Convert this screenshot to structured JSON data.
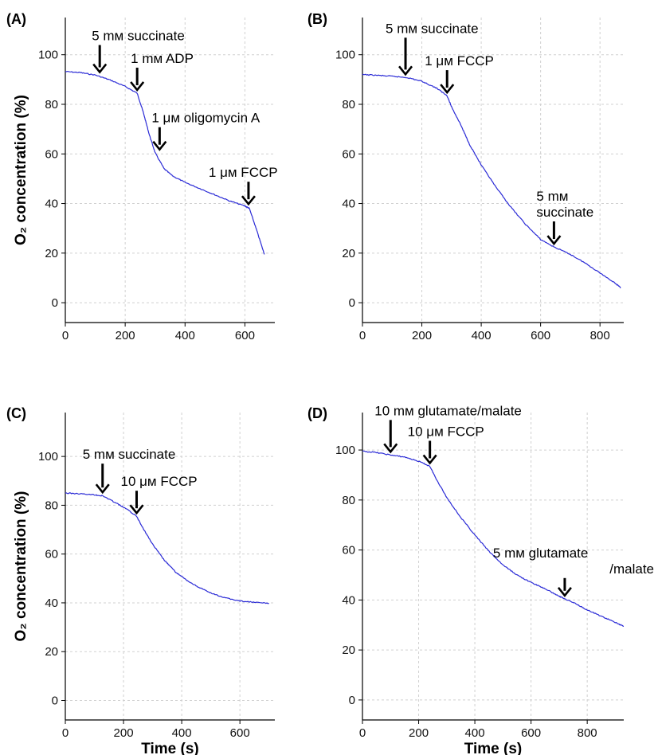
{
  "chart_data": [
    {
      "panel": "(A)",
      "type": "line",
      "xlim": [
        0,
        700
      ],
      "ylim": [
        -8,
        115
      ],
      "xticks": [
        0,
        200,
        400,
        600
      ],
      "yticks": [
        0,
        20,
        40,
        60,
        80,
        100
      ],
      "grid": true,
      "line_color": "#2b2bd6",
      "series": [
        {
          "x": [
            0,
            50,
            100,
            150,
            200,
            240,
            260,
            280,
            300,
            330,
            360,
            400,
            450,
            500,
            550,
            600,
            615,
            640,
            665
          ],
          "y": [
            93.2,
            92.8,
            91.8,
            89.8,
            87.2,
            84.5,
            77,
            68,
            60.5,
            54,
            51,
            48.5,
            46,
            43.5,
            41,
            39,
            38,
            29,
            19.5
          ]
        }
      ],
      "annotations": [
        {
          "lines": [
            "5 mᴍ succinate"
          ],
          "x": 115,
          "y": 91.7
        },
        {
          "lines": [
            "1 mᴍ ADP"
          ],
          "x": 240,
          "y": 84.5
        },
        {
          "lines": [
            "1 μᴍ oligomycin A"
          ],
          "x": 315,
          "y": 60.5
        },
        {
          "lines": [
            "1 μᴍ FCCP"
          ],
          "x": 612,
          "y": 38.5
        }
      ]
    },
    {
      "panel": "(B)",
      "type": "line",
      "xlim": [
        0,
        880
      ],
      "ylim": [
        -8,
        115
      ],
      "xticks": [
        0,
        200,
        400,
        600,
        800
      ],
      "yticks": [
        0,
        20,
        40,
        60,
        80,
        100
      ],
      "grid": true,
      "line_color": "#2b2bd6",
      "series": [
        {
          "x": [
            0,
            50,
            100,
            150,
            200,
            250,
            285,
            300,
            330,
            360,
            400,
            450,
            500,
            550,
            600,
            645,
            700,
            750,
            800,
            850,
            870
          ],
          "y": [
            92,
            91.7,
            91.3,
            90.8,
            89.3,
            86.5,
            83.5,
            79,
            72,
            64,
            55.5,
            46.5,
            38.5,
            31.5,
            25.5,
            22.5,
            19.5,
            16,
            12,
            8,
            6
          ]
        }
      ],
      "annotations": [
        {
          "lines": [
            "5 mᴍ succinate"
          ],
          "x": 145,
          "y": 90.8
        },
        {
          "lines": [
            "1 μᴍ FCCP"
          ],
          "x": 285,
          "y": 83.5
        },
        {
          "lines": [
            "5 mᴍ",
            "succinate"
          ],
          "x": 645,
          "y": 22.5
        }
      ]
    },
    {
      "panel": "(C)",
      "type": "line",
      "xlim": [
        0,
        720
      ],
      "ylim": [
        -8,
        118
      ],
      "xticks": [
        0,
        200,
        400,
        600
      ],
      "yticks": [
        0,
        20,
        40,
        60,
        80,
        100
      ],
      "grid": true,
      "line_color": "#2b2bd6",
      "series": [
        {
          "x": [
            0,
            50,
            100,
            130,
            170,
            210,
            245,
            270,
            300,
            340,
            380,
            420,
            460,
            500,
            550,
            600,
            650,
            700
          ],
          "y": [
            85,
            84.7,
            84.3,
            83.8,
            81.2,
            78.5,
            75.5,
            70,
            64,
            57.5,
            52.5,
            49,
            46.3,
            44,
            42,
            40.8,
            40.2,
            39.8
          ]
        }
      ],
      "annotations": [
        {
          "lines": [
            "5 mᴍ succinate"
          ],
          "x": 128,
          "y": 84
        },
        {
          "lines": [
            "10 μᴍ FCCP"
          ],
          "x": 245,
          "y": 75.5
        }
      ]
    },
    {
      "panel": "(D)",
      "type": "line",
      "xlim": [
        0,
        930
      ],
      "ylim": [
        -8,
        115
      ],
      "xticks": [
        0,
        200,
        400,
        600,
        800
      ],
      "yticks": [
        0,
        20,
        40,
        60,
        80,
        100
      ],
      "grid": true,
      "line_color": "#2b2bd6",
      "series": [
        {
          "x": [
            0,
            50,
            100,
            150,
            200,
            240,
            260,
            300,
            350,
            400,
            450,
            500,
            550,
            600,
            650,
            700,
            720,
            760,
            800,
            850,
            900,
            930
          ],
          "y": [
            99.5,
            99,
            98,
            97.2,
            95.5,
            93.5,
            89,
            81,
            73,
            66,
            59.5,
            54,
            50,
            47,
            44.5,
            41.5,
            40.5,
            38.5,
            36,
            33.5,
            31,
            29.5
          ]
        }
      ],
      "annotations": [
        {
          "lines": [
            "10 mᴍ glutamate/malate"
          ],
          "x": 100,
          "y": 98
        },
        {
          "lines": [
            "10 μᴍ FCCP"
          ],
          "x": 240,
          "y": 93.5
        },
        {
          "lines": [
            "5 mᴍ glutamate",
            "/malate"
          ],
          "x": 720,
          "y": 40.5
        }
      ]
    }
  ],
  "ylabel": "O₂ concentration (%)",
  "xlabel": "Time (s)"
}
